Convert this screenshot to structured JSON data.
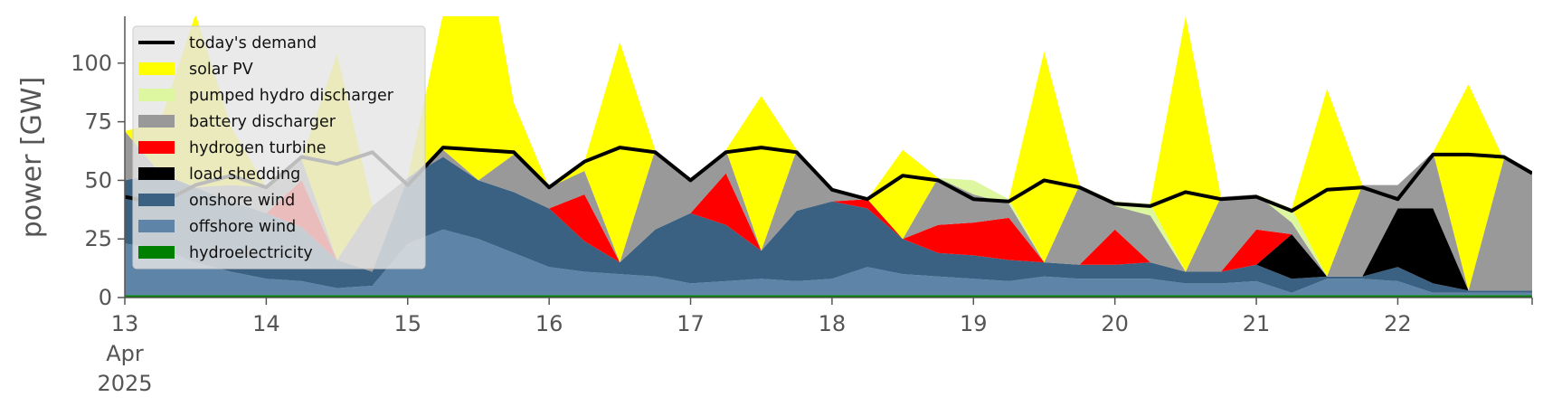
{
  "chart_data": {
    "type": "area",
    "ylabel": "power [GW]",
    "xlabel": "",
    "ylim": [
      0,
      120
    ],
    "y_ticks": [
      0,
      25,
      50,
      75,
      100
    ],
    "xlim": [
      13,
      22.95
    ],
    "x_ticks": [
      {
        "x": 13,
        "lines": [
          "13",
          "Apr",
          "2025"
        ]
      },
      {
        "x": 14,
        "lines": [
          "14"
        ]
      },
      {
        "x": 15,
        "lines": [
          "15"
        ]
      },
      {
        "x": 16,
        "lines": [
          "16"
        ]
      },
      {
        "x": 17,
        "lines": [
          "17"
        ]
      },
      {
        "x": 18,
        "lines": [
          "18"
        ]
      },
      {
        "x": 19,
        "lines": [
          "19"
        ]
      },
      {
        "x": 20,
        "lines": [
          "20"
        ]
      },
      {
        "x": 21,
        "lines": [
          "21"
        ]
      },
      {
        "x": 22,
        "lines": [
          "22"
        ]
      }
    ],
    "legend_position": "upper left",
    "grid": false,
    "x": [
      13.0,
      13.25,
      13.5,
      13.75,
      14.0,
      14.25,
      14.5,
      14.75,
      15.0,
      15.25,
      15.5,
      15.75,
      16.0,
      16.25,
      16.5,
      16.75,
      17.0,
      17.25,
      17.5,
      17.75,
      18.0,
      18.25,
      18.5,
      18.75,
      19.0,
      19.25,
      19.5,
      19.75,
      20.0,
      20.25,
      20.5,
      20.75,
      21.0,
      21.25,
      21.5,
      21.75,
      22.0,
      22.25,
      22.5,
      22.75,
      22.95
    ],
    "demand": {
      "name": "today's demand",
      "color": "#000000",
      "values": [
        43,
        40,
        48,
        52,
        47,
        60,
        57,
        62,
        48,
        64,
        63,
        62,
        47,
        58,
        64,
        62,
        50,
        62,
        64,
        62,
        46,
        42,
        52,
        50,
        42,
        41,
        50,
        47,
        40,
        39,
        45,
        42,
        43,
        37,
        46,
        47,
        42,
        61,
        61,
        60,
        53
      ]
    },
    "series": [
      {
        "name": "hydroelectricity",
        "color": "#008000",
        "values": [
          1,
          1,
          1,
          1,
          1,
          1,
          1,
          1,
          1,
          1,
          1,
          1,
          1,
          1,
          1,
          1,
          1,
          1,
          1,
          1,
          1,
          1,
          1,
          1,
          1,
          1,
          1,
          1,
          1,
          1,
          1,
          1,
          1,
          1,
          1,
          1,
          1,
          1,
          1,
          1,
          1
        ]
      },
      {
        "name": "offshore wind",
        "color": "#5e84a8",
        "values": [
          22,
          20,
          14,
          10,
          7,
          6,
          3,
          4,
          22,
          28,
          24,
          18,
          12,
          10,
          9,
          8,
          5,
          6,
          7,
          6,
          7,
          12,
          9,
          8,
          7,
          6,
          8,
          7,
          7,
          7,
          5,
          5,
          6,
          1,
          7,
          7,
          6,
          1,
          1,
          1,
          1
        ]
      },
      {
        "name": "onshore wind",
        "color": "#3b6182",
        "values": [
          27,
          32,
          32,
          30,
          28,
          23,
          12,
          6,
          28,
          31,
          25,
          26,
          25,
          13,
          5,
          20,
          30,
          24,
          12,
          30,
          33,
          25,
          15,
          10,
          10,
          9,
          6,
          6,
          6,
          7,
          5,
          5,
          7,
          6,
          1,
          1,
          6,
          4,
          1,
          1,
          1
        ]
      },
      {
        "name": "load shedding",
        "color": "#000000",
        "values": [
          0,
          0,
          0,
          0,
          0,
          0,
          0,
          0,
          0,
          0,
          0,
          0,
          0,
          0,
          0,
          0,
          0,
          0,
          0,
          0,
          0,
          0,
          0,
          0,
          0,
          0,
          0,
          0,
          0,
          0,
          0,
          0,
          0,
          19,
          0,
          0,
          25,
          32,
          0,
          0,
          0
        ]
      },
      {
        "name": "hydrogen turbine",
        "color": "#ff0000",
        "values": [
          0,
          0,
          0,
          0,
          0,
          20,
          0,
          0,
          0,
          0,
          0,
          0,
          0,
          20,
          0,
          0,
          0,
          22,
          0,
          0,
          0,
          4,
          0,
          12,
          14,
          18,
          0,
          0,
          15,
          0,
          0,
          0,
          15,
          0,
          0,
          0,
          0,
          0,
          0,
          0,
          0
        ]
      },
      {
        "name": "battery discharger",
        "color": "#999999",
        "values": [
          21,
          0,
          0,
          7,
          11,
          9,
          0,
          28,
          0,
          3,
          0,
          16,
          9,
          10,
          0,
          34,
          15,
          10,
          0,
          26,
          5,
          0,
          0,
          20,
          12,
          6,
          0,
          34,
          10,
          20,
          0,
          32,
          15,
          5,
          0,
          39,
          10,
          24,
          0,
          56,
          50
        ]
      },
      {
        "name": "pumped hydro discharger",
        "color": "#dcf7a0",
        "values": [
          0,
          0,
          0,
          0,
          0,
          0,
          0,
          0,
          0,
          0,
          0,
          0,
          0,
          0,
          0,
          0,
          0,
          0,
          0,
          0,
          0,
          0,
          0,
          0,
          6,
          2,
          0,
          0,
          2,
          5,
          0,
          0,
          0,
          6,
          0,
          0,
          0,
          0,
          0,
          0,
          0
        ]
      },
      {
        "name": "solar PV",
        "color": "#ffff00",
        "values": [
          0,
          22,
          74,
          25,
          0,
          0,
          88,
          0,
          0,
          58,
          118,
          22,
          0,
          4,
          94,
          0,
          0,
          0,
          66,
          0,
          0,
          0,
          38,
          0,
          0,
          0,
          90,
          0,
          0,
          0,
          109,
          0,
          0,
          0,
          80,
          0,
          0,
          0,
          88,
          0,
          0
        ]
      }
    ]
  }
}
